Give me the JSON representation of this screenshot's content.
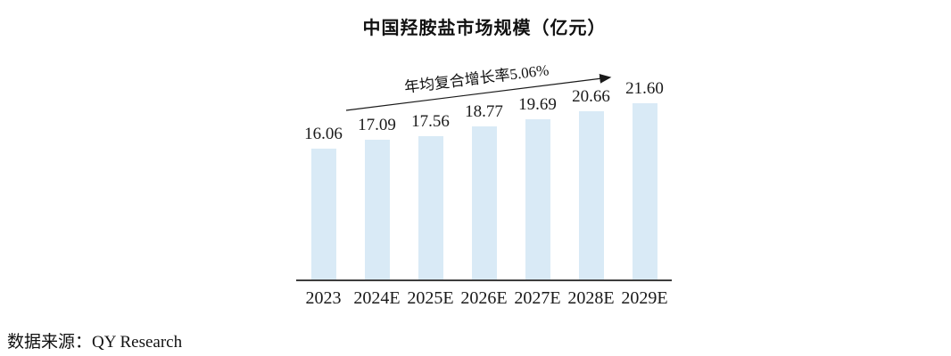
{
  "source": {
    "label": "数据来源：QY Research"
  },
  "chart_data": {
    "type": "bar",
    "title": "中国羟胺盐市场规模（亿元）",
    "categories": [
      "2023",
      "2024E",
      "2025E",
      "2026E",
      "2027E",
      "2028E",
      "2029E"
    ],
    "values": [
      16.06,
      17.09,
      17.56,
      18.77,
      19.69,
      20.66,
      21.6
    ],
    "value_labels": [
      "16.06",
      "17.09",
      "17.56",
      "18.77",
      "19.69",
      "20.66",
      "21.60"
    ],
    "annotation": "年均复合增长率5.06%",
    "xlabel": "",
    "ylabel": "",
    "ylim": [
      0,
      22
    ],
    "grid": false,
    "legend_position": "none",
    "bar_color": "#d9eaf6",
    "axis_color": "#3d3d3d",
    "ink_color": "#1a1a1a"
  }
}
